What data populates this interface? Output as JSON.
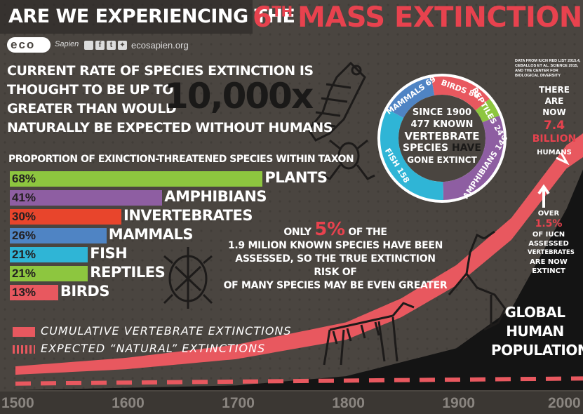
{
  "header": {
    "title_part1": "ARE WE EXPERIENCING THE",
    "title_part2": "6",
    "title_sup": "TH",
    "title_part3": "MASS EXTINCTION?",
    "brand_logo": "eco",
    "brand_sapien": "Sapien",
    "social_icons": [
      "instagram-icon",
      "facebook-icon",
      "tumblr-icon",
      "twitter-icon"
    ],
    "website": "ecosapien.org"
  },
  "headline": {
    "line1": "CURRENT RATE OF SPECIES EXTINCTION IS",
    "line2": "THOUGHT TO BE UP TO",
    "line3": "GREATER THAN WOULD",
    "line4": "NATURALLY BE EXPECTED WITHOUT HUMANS",
    "big_value": "10,000x"
  },
  "source_note": [
    "DATA FROM IUCN RED LIST 2015.4,",
    "CEBALLOS ET AL. SCIENCE 2015,",
    "AND THE CENTER FOR",
    "BIOLOGICAL DIVERSITY"
  ],
  "population": {
    "line1": "THERE ARE",
    "line2": "NOW",
    "value": "7.4",
    "unit": "BILLION",
    "line3": "HUMANS"
  },
  "iucn": {
    "line1": "OVER",
    "value": "1.5%",
    "line2": "OF IUCN",
    "line3": "ASSESSED",
    "line4": "VERTEBRATES",
    "line5": "ARE NOW",
    "line6": "EXTINCT"
  },
  "assessed_note": {
    "prefix": "ONLY",
    "value": "5%",
    "suffix": "OF THE",
    "line2": "1.9 MILION KNOWN SPECIES HAVE BEEN",
    "line3": "ASSESSED, SO THE TRUE EXTINCTION RISK OF",
    "line4": "OF MANY SPECIES MAY BE EVEN GREATER"
  },
  "global_population_label": [
    "GLOBAL",
    "HUMAN",
    "POPULATION"
  ],
  "legend": {
    "cumulative": "CUMULATIVE VERTEBRATE EXTINCTIONS",
    "natural": "EXPECTED “NATURAL” EXTINCTIONS"
  },
  "colors": {
    "background": "#4a4540",
    "title_red": "#e8424e",
    "curve_red": "#e8585f",
    "plants": "#8dc63f",
    "amphibians": "#8e5ea2",
    "invertebrates": "#e8452c",
    "mammals": "#4f84c4",
    "fish": "#2fb5d6",
    "reptiles": "#8dc63f",
    "birds": "#e8585f"
  },
  "chart_data": [
    {
      "type": "bar",
      "title": "PROPORTION OF EXINCTION-THREATENED SPECIES WITHIN TAXON",
      "categories": [
        "PLANTS",
        "AMPHIBIANS",
        "INVERTEBRATES",
        "MAMMALS",
        "FISH",
        "REPTILES",
        "BIRDS"
      ],
      "values": [
        68,
        41,
        30,
        26,
        21,
        21,
        13
      ],
      "value_labels": [
        "68%",
        "41%",
        "30%",
        "26%",
        "21%",
        "21%",
        "13%"
      ],
      "unit": "%",
      "orientation": "horizontal",
      "colors": [
        "#8dc63f",
        "#8e5ea2",
        "#e8452c",
        "#4f84c4",
        "#2fb5d6",
        "#8dc63f",
        "#e8585f"
      ]
    },
    {
      "type": "pie",
      "donut": true,
      "center_text": [
        "SINCE 1900",
        "477 KNOWN",
        "VERTEBRATE",
        "SPECIES",
        "HAVE",
        "GONE EXTINCT"
      ],
      "slices": [
        {
          "label": "BIRDS 80",
          "name": "BIRDS",
          "value": 80,
          "color": "#e8585f"
        },
        {
          "label": "REPTILES 24",
          "name": "REPTILES",
          "value": 24,
          "color": "#8dc63f"
        },
        {
          "label": "AMPHIBIANS 146",
          "name": "AMPHIBIANS",
          "value": 146,
          "color": "#8e5ea2"
        },
        {
          "label": "FISH 158",
          "name": "FISH",
          "value": 158,
          "color": "#2fb5d6"
        },
        {
          "label": "MAMMALS 69",
          "name": "MAMMALS",
          "value": 69,
          "color": "#4f84c4"
        }
      ]
    },
    {
      "type": "area",
      "x_ticks": [
        "1500",
        "1600",
        "1700",
        "1800",
        "1900",
        "2000"
      ],
      "xlim": [
        1500,
        2015
      ],
      "series": [
        {
          "name": "CUMULATIVE VERTEBRATE EXTINCTIONS",
          "x": [
            1500,
            1600,
            1700,
            1800,
            1850,
            1900,
            1950,
            2000,
            2015
          ],
          "y": [
            0.03,
            0.06,
            0.11,
            0.2,
            0.3,
            0.44,
            0.64,
            0.95,
            1.0
          ]
        },
        {
          "name": "EXPECTED “NATURAL” EXTINCTIONS",
          "x": [
            1500,
            2015
          ],
          "y": [
            0.01,
            0.02
          ]
        },
        {
          "name": "GLOBAL HUMAN POPULATION",
          "x": [
            1500,
            1700,
            1800,
            1900,
            1950,
            2000,
            2015
          ],
          "y": [
            0.0,
            0.02,
            0.06,
            0.18,
            0.35,
            0.78,
            0.95
          ]
        }
      ]
    }
  ]
}
